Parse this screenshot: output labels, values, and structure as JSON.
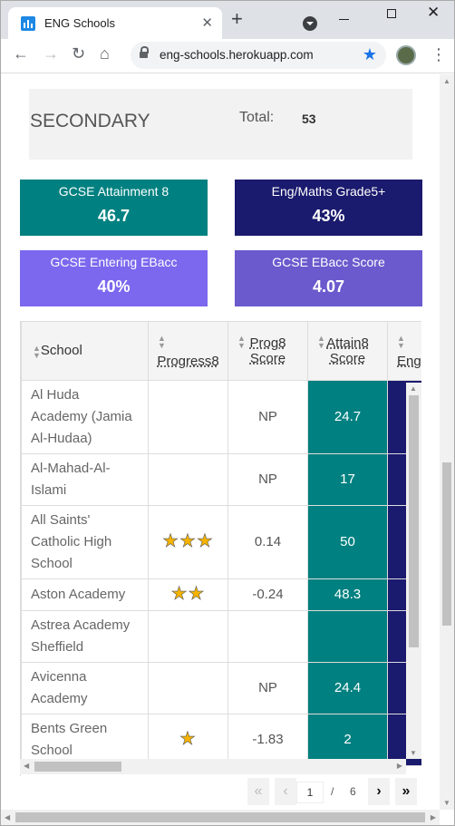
{
  "browser": {
    "tab_title": "ENG Schools",
    "url": "eng-schools.herokuapp.com"
  },
  "summary": {
    "level": "SECONDARY",
    "total_label": "Total:",
    "total_value": "53"
  },
  "cards": [
    {
      "title": "GCSE Attainment 8",
      "value": "46.7",
      "color": "#008080"
    },
    {
      "title": "Eng/Maths Grade5+",
      "value": "43%",
      "color": "#1a1a6e"
    },
    {
      "title": "GCSE Entering EBacc",
      "value": "40%",
      "color": "#7b68ee"
    },
    {
      "title": "GCSE EBacc Score",
      "value": "4.07",
      "color": "#6a5acd"
    }
  ],
  "table": {
    "headers": {
      "school": "School",
      "progress8": "Progress8",
      "prog8_score_1": "Prog8",
      "prog8_score_2": "Score",
      "attain8_1": "Attain8",
      "attain8_2": "Score",
      "eng": "Eng"
    },
    "rows": [
      {
        "school": "Al Huda Academy (Jamia Al-Hudaa)",
        "stars": "",
        "prog8": "NP",
        "attain8": "24.7"
      },
      {
        "school": "Al-Mahad-Al-Islami",
        "stars": "",
        "prog8": "NP",
        "attain8": "17"
      },
      {
        "school": "All Saints' Catholic High School",
        "stars": "★★★",
        "prog8": "0.14",
        "attain8": "50"
      },
      {
        "school": "Aston Academy",
        "stars": "★★",
        "prog8": "-0.24",
        "attain8": "48.3"
      },
      {
        "school": "Astrea Academy Sheffield",
        "stars": "",
        "prog8": "",
        "attain8": ""
      },
      {
        "school": "Avicenna Academy",
        "stars": "",
        "prog8": "NP",
        "attain8": "24.4"
      },
      {
        "school": "Bents Green School",
        "stars": "★",
        "prog8": "-1.83",
        "attain8": "2"
      }
    ]
  },
  "pager": {
    "first": "«",
    "prev": "‹",
    "current": "1",
    "separator": "/",
    "total": "6",
    "next": "›",
    "last": "»"
  }
}
